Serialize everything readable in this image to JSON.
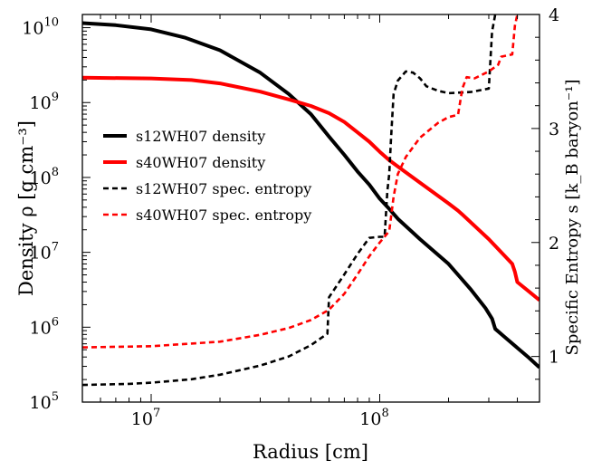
{
  "chart_data": {
    "type": "line",
    "xlabel": "Radius [cm]",
    "ylabel_left": "Density ρ [g cm⁻³]",
    "ylabel_right": "Specific Entropy s [k_B baryon⁻¹]",
    "x_scale": "log",
    "y_left_scale": "log",
    "xlim": [
      5000000,
      500000000
    ],
    "ylim_left": [
      100000,
      15000000000
    ],
    "ylim_right": [
      0.6,
      4.0
    ],
    "x_ticks": [
      {
        "value": 10000000,
        "base": "10",
        "exp": "7"
      },
      {
        "value": 100000000,
        "base": "10",
        "exp": "8"
      }
    ],
    "y_left_ticks": [
      {
        "value": 100000,
        "base": "10",
        "exp": "5"
      },
      {
        "value": 1000000,
        "base": "10",
        "exp": "6"
      },
      {
        "value": 10000000,
        "base": "10",
        "exp": "7"
      },
      {
        "value": 100000000,
        "base": "10",
        "exp": "8"
      },
      {
        "value": 1000000000,
        "base": "10",
        "exp": "9"
      },
      {
        "value": 10000000000,
        "base": "10",
        "exp": "10"
      }
    ],
    "y_right_ticks": [
      {
        "value": 1,
        "label": "1"
      },
      {
        "value": 2,
        "label": "2"
      },
      {
        "value": 3,
        "label": "3"
      },
      {
        "value": 4,
        "label": "4"
      }
    ],
    "legend_position": "center-left",
    "grid": false,
    "series": [
      {
        "name": "s12WH07 density",
        "axis": "left",
        "color": "#000000",
        "style": "solid",
        "points": [
          [
            5000000,
            11500000000
          ],
          [
            7000000,
            10800000000
          ],
          [
            10000000,
            9500000000
          ],
          [
            14000000,
            7400000000
          ],
          [
            20000000,
            5000000000
          ],
          [
            30000000,
            2500000000
          ],
          [
            40000000,
            1300000000
          ],
          [
            50000000,
            700000000
          ],
          [
            60000000,
            350000000
          ],
          [
            70000000,
            200000000
          ],
          [
            80000000,
            120000000
          ],
          [
            90000000,
            80000000
          ],
          [
            100000000,
            52000000
          ],
          [
            110000000,
            38000000
          ],
          [
            120000000,
            28000000
          ],
          [
            150000000,
            15000000
          ],
          [
            200000000,
            7000000
          ],
          [
            250000000,
            3200000
          ],
          [
            290000000,
            1800000
          ],
          [
            310000000,
            1300000
          ],
          [
            320000000,
            950000
          ],
          [
            350000000,
            750000
          ],
          [
            400000000,
            530000
          ],
          [
            450000000,
            390000
          ],
          [
            500000000,
            290000
          ]
        ]
      },
      {
        "name": "s40WH07 density",
        "axis": "left",
        "color": "#ff0000",
        "style": "solid",
        "points": [
          [
            5000000,
            2150000000
          ],
          [
            10000000,
            2100000000
          ],
          [
            15000000,
            2000000000
          ],
          [
            20000000,
            1800000000
          ],
          [
            30000000,
            1400000000
          ],
          [
            40000000,
            1100000000
          ],
          [
            50000000,
            900000000
          ],
          [
            60000000,
            720000000
          ],
          [
            70000000,
            550000000
          ],
          [
            80000000,
            400000000
          ],
          [
            90000000,
            300000000
          ],
          [
            100000000,
            220000000
          ],
          [
            110000000,
            170000000
          ],
          [
            120000000,
            140000000
          ],
          [
            150000000,
            85000000
          ],
          [
            200000000,
            45000000
          ],
          [
            220000000,
            36000000
          ],
          [
            230000000,
            32000000
          ],
          [
            300000000,
            15000000
          ],
          [
            380000000,
            7000000
          ],
          [
            390000000,
            5500000
          ],
          [
            400000000,
            4000000
          ],
          [
            450000000,
            3000000
          ],
          [
            500000000,
            2300000
          ]
        ]
      },
      {
        "name": "s12WH07 spec. entropy",
        "axis": "right",
        "color": "#000000",
        "style": "dashed",
        "points": [
          [
            5000000,
            0.75
          ],
          [
            8000000,
            0.76
          ],
          [
            10000000,
            0.77
          ],
          [
            15000000,
            0.8
          ],
          [
            20000000,
            0.84
          ],
          [
            30000000,
            0.92
          ],
          [
            40000000,
            1.0
          ],
          [
            50000000,
            1.1
          ],
          [
            59000000,
            1.2
          ],
          [
            60000000,
            1.52
          ],
          [
            70000000,
            1.72
          ],
          [
            80000000,
            1.9
          ],
          [
            90000000,
            2.04
          ],
          [
            100000000,
            2.05
          ],
          [
            105000000,
            2.05
          ],
          [
            108000000,
            2.45
          ],
          [
            110000000,
            2.6
          ],
          [
            112000000,
            2.9
          ],
          [
            115000000,
            3.3
          ],
          [
            120000000,
            3.42
          ],
          [
            130000000,
            3.5
          ],
          [
            140000000,
            3.49
          ],
          [
            150000000,
            3.44
          ],
          [
            160000000,
            3.37
          ],
          [
            180000000,
            3.33
          ],
          [
            200000000,
            3.31
          ],
          [
            250000000,
            3.32
          ],
          [
            300000000,
            3.35
          ],
          [
            305000000,
            3.6
          ],
          [
            310000000,
            3.85
          ],
          [
            320000000,
            4.0
          ]
        ]
      },
      {
        "name": "s40WH07 spec. entropy",
        "axis": "right",
        "color": "#ff0000",
        "style": "dashed",
        "points": [
          [
            5000000,
            1.08
          ],
          [
            10000000,
            1.09
          ],
          [
            20000000,
            1.13
          ],
          [
            30000000,
            1.19
          ],
          [
            40000000,
            1.25
          ],
          [
            50000000,
            1.32
          ],
          [
            60000000,
            1.41
          ],
          [
            70000000,
            1.55
          ],
          [
            80000000,
            1.72
          ],
          [
            90000000,
            1.88
          ],
          [
            100000000,
            2.0
          ],
          [
            110000000,
            2.1
          ],
          [
            115000000,
            2.4
          ],
          [
            120000000,
            2.6
          ],
          [
            130000000,
            2.75
          ],
          [
            150000000,
            2.92
          ],
          [
            180000000,
            3.05
          ],
          [
            200000000,
            3.1
          ],
          [
            220000000,
            3.12
          ],
          [
            230000000,
            3.35
          ],
          [
            240000000,
            3.45
          ],
          [
            260000000,
            3.44
          ],
          [
            300000000,
            3.5
          ],
          [
            330000000,
            3.56
          ],
          [
            340000000,
            3.63
          ],
          [
            380000000,
            3.65
          ],
          [
            390000000,
            3.9
          ],
          [
            400000000,
            4.0
          ]
        ]
      }
    ]
  }
}
